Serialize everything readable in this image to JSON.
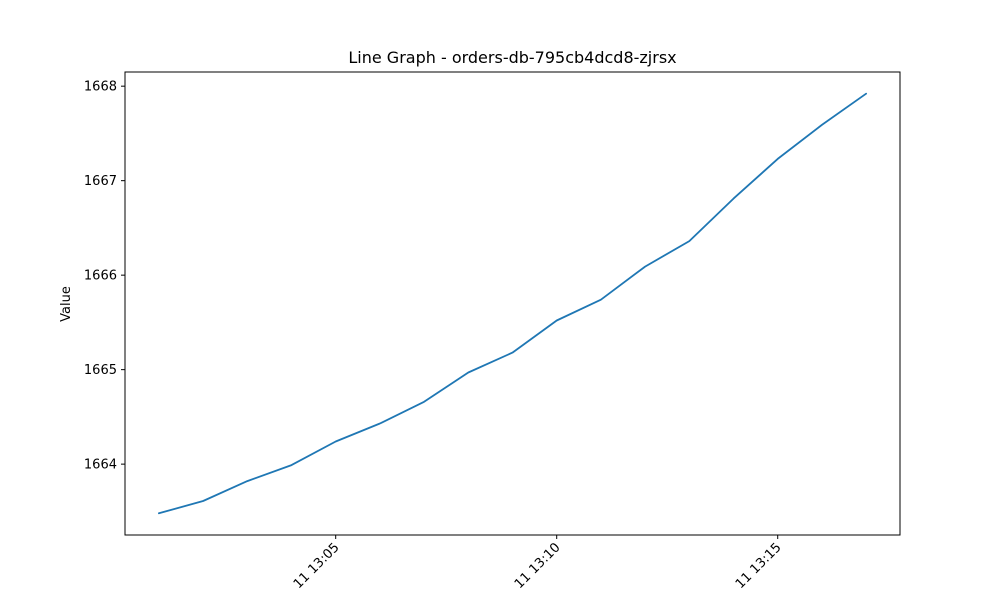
{
  "chart_data": {
    "type": "line",
    "title": "Line Graph - orders-db-795cb4dcd8-zjrsx",
    "xlabel": "",
    "ylabel": "Value",
    "x": [
      "13:01",
      "13:02",
      "13:03",
      "13:04",
      "13:05",
      "13:06",
      "13:07",
      "13:08",
      "13:09",
      "13:10",
      "13:11",
      "13:12",
      "13:13",
      "13:14",
      "13:15",
      "13:16",
      "13:17"
    ],
    "series": [
      {
        "values": [
          1663.48,
          1663.61,
          1663.82,
          1663.99,
          1664.24,
          1664.43,
          1664.66,
          1664.97,
          1665.18,
          1665.52,
          1665.74,
          1666.09,
          1666.36,
          1666.81,
          1667.23,
          1667.59,
          1667.92
        ]
      }
    ],
    "xticks": [
      {
        "x": "13:05",
        "label": "11 13:05"
      },
      {
        "x": "13:10",
        "label": "11 13:10"
      },
      {
        "x": "13:15",
        "label": "11 13:15"
      }
    ],
    "yticks": [
      1664,
      1665,
      1666,
      1667,
      1668
    ],
    "xlim": [
      "13:00:14",
      "13:17:46"
    ],
    "ylim": [
      1663.25,
      1668.15
    ],
    "grid": false,
    "line_color": "#1f77b4"
  }
}
